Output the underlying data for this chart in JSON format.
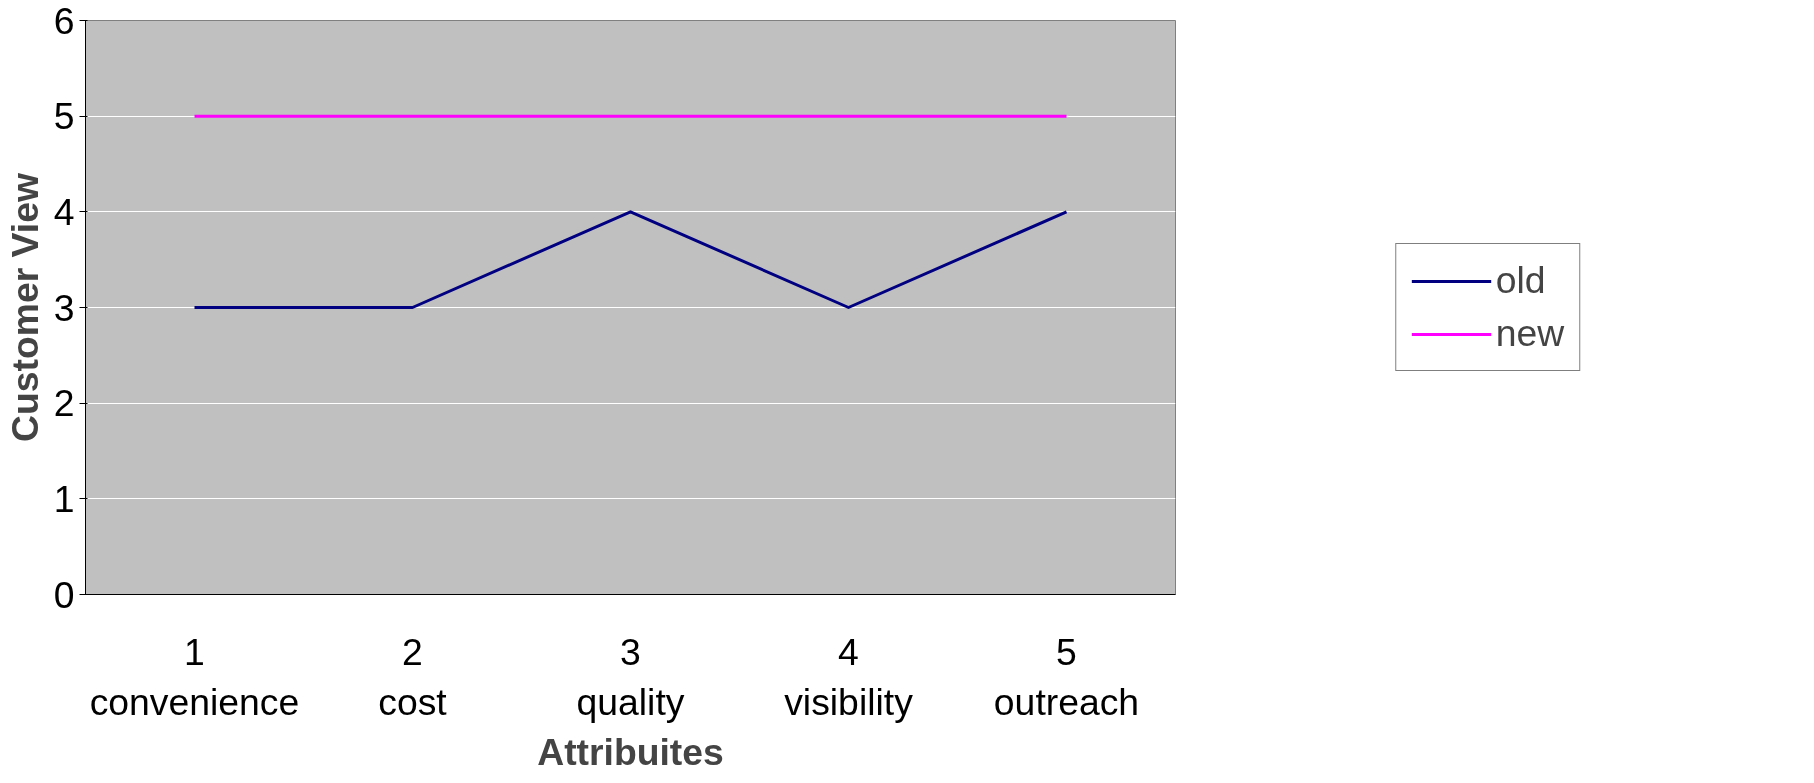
{
  "chart_data": {
    "type": "line",
    "xlabel": "Attribuites",
    "ylabel": "Customer View",
    "categories": [
      "1\nconvenience",
      "2\ncost",
      "3\nquality",
      "4\nvisibility",
      "5\noutreach"
    ],
    "series": [
      {
        "name": "old",
        "color": "#000080",
        "values": [
          3,
          3,
          4,
          3,
          4
        ]
      },
      {
        "name": "new",
        "color": "#ff00ff",
        "values": [
          5,
          5,
          5,
          5,
          5
        ]
      }
    ],
    "ylim": [
      0,
      6
    ],
    "yticks": [
      0,
      1,
      2,
      3,
      4,
      5,
      6
    ],
    "grid": "y",
    "legend": "right",
    "marker": "none",
    "line_style": "solid"
  }
}
